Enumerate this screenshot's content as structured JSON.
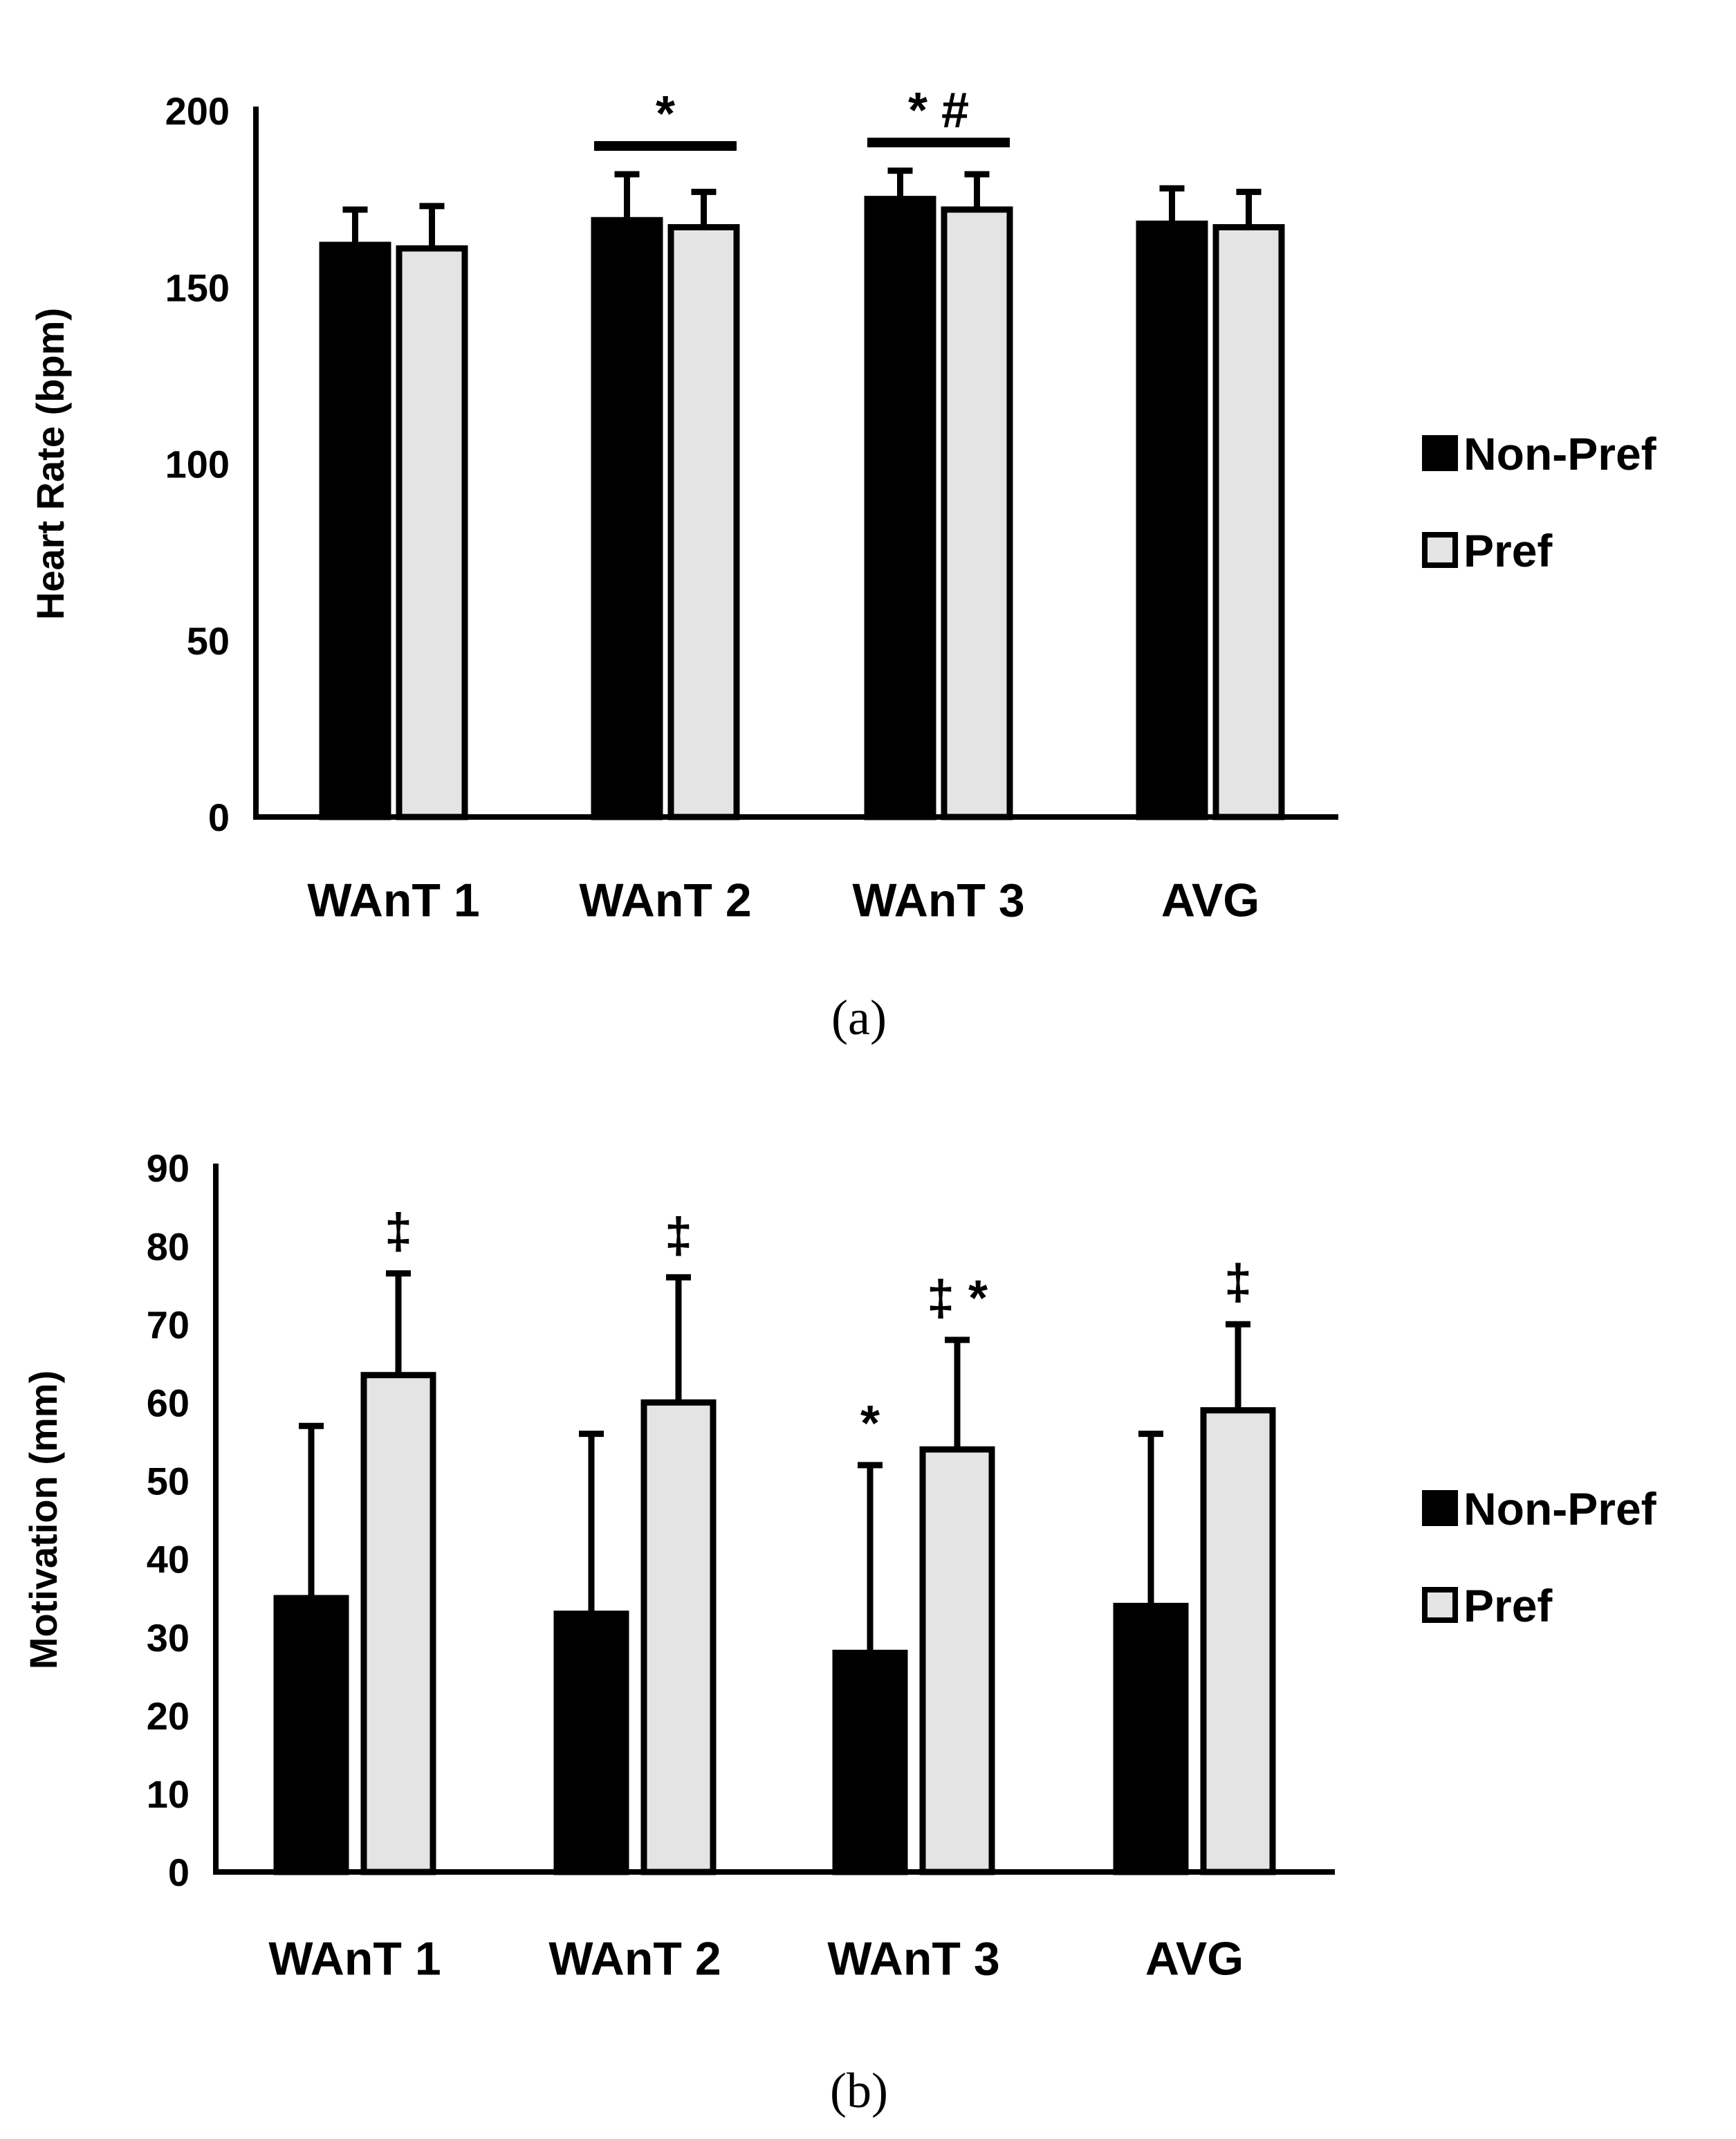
{
  "chart_data": [
    {
      "type": "bar",
      "panel": "a",
      "caption": "(a)",
      "ylabel": "Heart Rate (bpm)",
      "xlabel": "",
      "ylim": [
        0,
        200
      ],
      "yticks": [
        0,
        50,
        100,
        150,
        200
      ],
      "categories": [
        "WAnT 1",
        "WAnT 2",
        "WAnT 3",
        "AVG"
      ],
      "series": [
        {
          "name": "Non-Pref",
          "color": "#000000",
          "values": [
            162,
            169,
            175,
            168
          ],
          "errors": [
            10,
            13,
            8,
            10
          ]
        },
        {
          "name": "Pref",
          "color": "#e4e4e4",
          "values": [
            161,
            167,
            172,
            167
          ],
          "errors": [
            12,
            10,
            10,
            10
          ]
        }
      ],
      "annotations": [
        {
          "text": "*",
          "category": "WAnT 2",
          "type": "bracket",
          "level": 190
        },
        {
          "text": "* #",
          "category": "WAnT 3",
          "type": "bracket",
          "level": 191
        }
      ],
      "legend": [
        "Non-Pref",
        "Pref"
      ],
      "legend_position": "right"
    },
    {
      "type": "bar",
      "panel": "b",
      "caption": "(b)",
      "ylabel": "Motivation (mm)",
      "xlabel": "",
      "ylim": [
        0,
        90
      ],
      "yticks": [
        0,
        10,
        20,
        30,
        40,
        50,
        60,
        70,
        80,
        90
      ],
      "categories": [
        "WAnT 1",
        "WAnT 2",
        "WAnT 3",
        "AVG"
      ],
      "series": [
        {
          "name": "Non-Pref",
          "color": "#000000",
          "values": [
            35,
            33,
            28,
            34
          ],
          "errors": [
            22,
            23,
            24,
            22
          ]
        },
        {
          "name": "Pref",
          "color": "#e4e4e4",
          "values": [
            63.5,
            60,
            54,
            59
          ],
          "errors": [
            13,
            16,
            14,
            11
          ]
        }
      ],
      "annotations": [
        {
          "text": "‡",
          "category": "WAnT 1",
          "series": "Pref"
        },
        {
          "text": "‡",
          "category": "WAnT 2",
          "series": "Pref"
        },
        {
          "text": "‡ *",
          "category": "WAnT 3",
          "series": "Pref"
        },
        {
          "text": "*",
          "category": "WAnT 3",
          "series": "Non-Pref"
        },
        {
          "text": "‡",
          "category": "AVG",
          "series": "Pref"
        }
      ],
      "legend": [
        "Non-Pref",
        "Pref"
      ],
      "legend_position": "right"
    }
  ]
}
